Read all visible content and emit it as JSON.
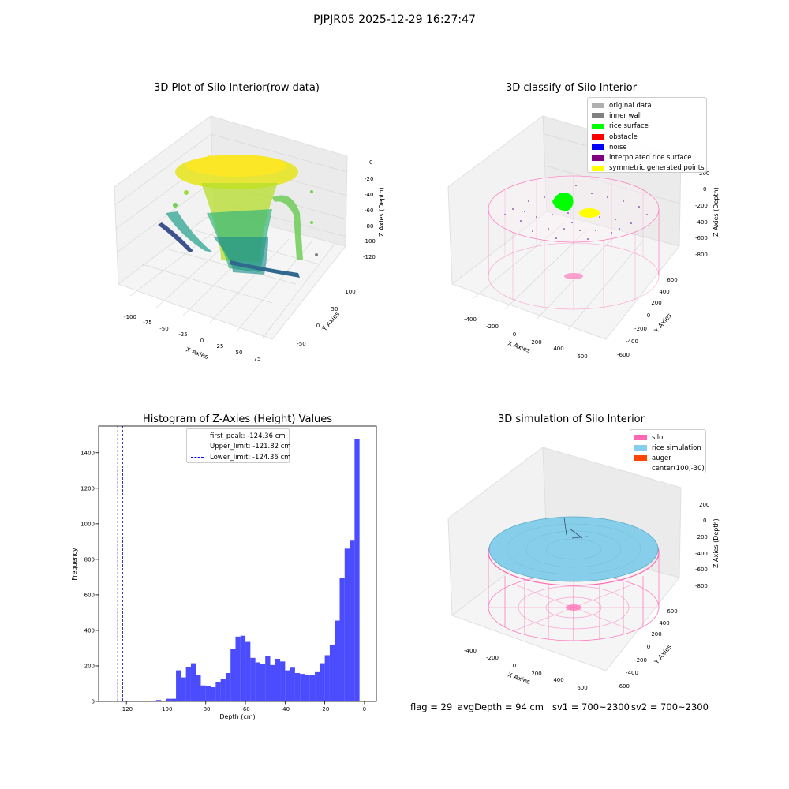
{
  "suptitle": "PJPJR05 2025-12-29 16:27:47",
  "footer": {
    "flag": "flag = 29",
    "avgdepth": "avgDepth = 94 cm",
    "sv1": "sv1 = 700~2300",
    "sv2": "sv2 = 700~2300"
  },
  "panels": {
    "raw": {
      "title": "3D Plot of Silo Interior(row data)",
      "xlabel": "X Axies",
      "ylabel": "Y Axies",
      "zlabel": "Z Axies (Depth)",
      "xticks": [
        "-100",
        "-75",
        "-50",
        "-25",
        "0",
        "25",
        "50",
        "75"
      ],
      "yticks": [
        "-50",
        "0",
        "50",
        "100"
      ],
      "zticks": [
        "0",
        "-20",
        "-40",
        "-60",
        "-80",
        "-100",
        "-120"
      ]
    },
    "classify": {
      "title": "3D classify of Silo Interior",
      "xlabel": "X Axies",
      "ylabel": "Y Axies",
      "zlabel": "Z Axies (Depth)",
      "xticks": [
        "-400",
        "-200",
        "0",
        "200",
        "400",
        "600"
      ],
      "yticks": [
        "-600",
        "-400",
        "-200",
        "0",
        "200",
        "400",
        "600"
      ],
      "zticks": [
        "200",
        "0",
        "-200",
        "-400",
        "-600",
        "-800"
      ],
      "legend": [
        {
          "label": "original data",
          "color": "#b0b0b0"
        },
        {
          "label": "inner wall",
          "color": "#808080"
        },
        {
          "label": "rice surface",
          "color": "#00ff00"
        },
        {
          "label": "obstacle",
          "color": "#ff0000"
        },
        {
          "label": "noise",
          "color": "#0000ff"
        },
        {
          "label": "interpolated rice surface",
          "color": "#800080"
        },
        {
          "label": "symmetric generated points",
          "color": "#ffff00"
        }
      ]
    },
    "simulation": {
      "title": "3D simulation of Silo Interior",
      "xlabel": "X Axies",
      "ylabel": "Y Axies",
      "zlabel": "Z Axies (Depth)",
      "xticks": [
        "-400",
        "-200",
        "0",
        "200",
        "400",
        "600"
      ],
      "yticks": [
        "-600",
        "-400",
        "-200",
        "0",
        "200",
        "400",
        "600"
      ],
      "zticks": [
        "200",
        "0",
        "-200",
        "-400",
        "-600",
        "-800"
      ],
      "legend": [
        {
          "label": "silo",
          "color": "#ff69b4"
        },
        {
          "label": "rice simulation",
          "color": "#87ceeb"
        },
        {
          "label": "auger",
          "color": "#ff4500"
        },
        {
          "label": "center(100,-30)",
          "color": ""
        }
      ]
    }
  },
  "chart_data": [
    {
      "type": "bar",
      "title": "Histogram of Z-Axies (Height) Values",
      "xlabel": "Depth (cm)",
      "ylabel": "Frequency",
      "xlim": [
        -134,
        6
      ],
      "ylim": [
        0,
        1550
      ],
      "xticks": [
        -120,
        -100,
        -80,
        -60,
        -40,
        -20,
        0
      ],
      "yticks": [
        0,
        200,
        400,
        600,
        800,
        1000,
        1200,
        1400
      ],
      "bar_color": "#0000ff",
      "bins": [
        {
          "x0": -105,
          "x1": -102.5,
          "value": 8
        },
        {
          "x0": -102.5,
          "x1": -100,
          "value": 3
        },
        {
          "x0": -100,
          "x1": -97.5,
          "value": 15
        },
        {
          "x0": -97.5,
          "x1": -95,
          "value": 15
        },
        {
          "x0": -95,
          "x1": -92.5,
          "value": 175
        },
        {
          "x0": -92.5,
          "x1": -90,
          "value": 135
        },
        {
          "x0": -90,
          "x1": -87.5,
          "value": 195
        },
        {
          "x0": -87.5,
          "x1": -85,
          "value": 215
        },
        {
          "x0": -85,
          "x1": -82.5,
          "value": 150
        },
        {
          "x0": -82.5,
          "x1": -80,
          "value": 90
        },
        {
          "x0": -80,
          "x1": -77.5,
          "value": 85
        },
        {
          "x0": -77.5,
          "x1": -75,
          "value": 80
        },
        {
          "x0": -75,
          "x1": -72.5,
          "value": 110
        },
        {
          "x0": -72.5,
          "x1": -70,
          "value": 125
        },
        {
          "x0": -70,
          "x1": -67.5,
          "value": 160
        },
        {
          "x0": -67.5,
          "x1": -65,
          "value": 295
        },
        {
          "x0": -65,
          "x1": -62.5,
          "value": 365
        },
        {
          "x0": -62.5,
          "x1": -60,
          "value": 370
        },
        {
          "x0": -60,
          "x1": -57.5,
          "value": 335
        },
        {
          "x0": -57.5,
          "x1": -55,
          "value": 245
        },
        {
          "x0": -55,
          "x1": -52.5,
          "value": 220
        },
        {
          "x0": -52.5,
          "x1": -50,
          "value": 210
        },
        {
          "x0": -50,
          "x1": -47.5,
          "value": 255
        },
        {
          "x0": -47.5,
          "x1": -45,
          "value": 205
        },
        {
          "x0": -45,
          "x1": -42.5,
          "value": 240
        },
        {
          "x0": -42.5,
          "x1": -40,
          "value": 225
        },
        {
          "x0": -40,
          "x1": -37.5,
          "value": 175
        },
        {
          "x0": -37.5,
          "x1": -35,
          "value": 190
        },
        {
          "x0": -35,
          "x1": -32.5,
          "value": 160
        },
        {
          "x0": -32.5,
          "x1": -30,
          "value": 155
        },
        {
          "x0": -30,
          "x1": -27.5,
          "value": 150
        },
        {
          "x0": -27.5,
          "x1": -25,
          "value": 150
        },
        {
          "x0": -25,
          "x1": -22.5,
          "value": 165
        },
        {
          "x0": -22.5,
          "x1": -20,
          "value": 215
        },
        {
          "x0": -20,
          "x1": -17.5,
          "value": 260
        },
        {
          "x0": -17.5,
          "x1": -15,
          "value": 320
        },
        {
          "x0": -15,
          "x1": -12.5,
          "value": 455
        },
        {
          "x0": -12.5,
          "x1": -10,
          "value": 695
        },
        {
          "x0": -10,
          "x1": -7.5,
          "value": 860
        },
        {
          "x0": -7.5,
          "x1": -5,
          "value": 905
        },
        {
          "x0": -5,
          "x1": -2.5,
          "value": 1475
        },
        {
          "x0": -2.5,
          "x1": 0,
          "value": 0
        }
      ],
      "vlines": [
        {
          "label": "first_peak: -124.36 cm",
          "x": -124.36,
          "color": "#ff0000"
        },
        {
          "label": "Upper_limit: -121.82 cm",
          "x": -121.82,
          "color": "#00008b"
        },
        {
          "label": "Lower_limit: -124.36 cm",
          "x": -124.36,
          "color": "#0000ff"
        }
      ],
      "legend_position": "upper center"
    }
  ]
}
